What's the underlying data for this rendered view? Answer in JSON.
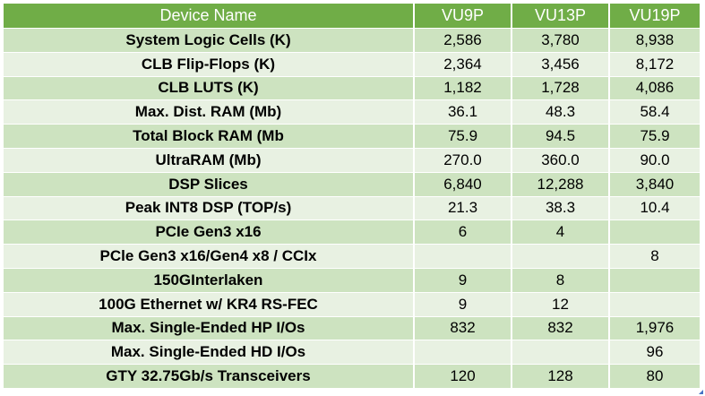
{
  "table": {
    "headers": [
      "Device Name",
      "VU9P",
      "VU13P",
      "VU19P"
    ],
    "rows": [
      [
        "System Logic Cells (K)",
        "2,586",
        "3,780",
        "8,938"
      ],
      [
        "CLB Flip-Flops (K)",
        "2,364",
        "3,456",
        "8,172"
      ],
      [
        "CLB LUTS (K)",
        "1,182",
        "1,728",
        "4,086"
      ],
      [
        "Max. Dist. RAM (Mb)",
        "36.1",
        "48.3",
        "58.4"
      ],
      [
        "Total Block RAM (Mb",
        "75.9",
        "94.5",
        "75.9"
      ],
      [
        "UltraRAM (Mb)",
        "270.0",
        "360.0",
        "90.0"
      ],
      [
        "DSP Slices",
        "6,840",
        "12,288",
        "3,840"
      ],
      [
        "Peak INT8 DSP (TOP/s)",
        "21.3",
        "38.3",
        "10.4"
      ],
      [
        "PCIe Gen3 x16",
        "6",
        "4",
        ""
      ],
      [
        "PCle Gen3 x16/Gen4 x8 / CCIx",
        "",
        "",
        "8"
      ],
      [
        "150GInterlaken",
        "9",
        "8",
        ""
      ],
      [
        "100G Ethernet w/ KR4 RS-FEC",
        "9",
        "12",
        ""
      ],
      [
        "Max. Single-Ended HP I/Os",
        "832",
        "832",
        "1,976"
      ],
      [
        "Max. Single-Ended HD I/Os",
        "",
        "",
        "96"
      ],
      [
        "GTY 32.75Gb/s Transceivers",
        "120",
        "128",
        "80"
      ]
    ]
  },
  "colors": {
    "header_bg": "#70ad47",
    "row_dark": "#cde3c0",
    "row_light": "#e8f1e2"
  }
}
